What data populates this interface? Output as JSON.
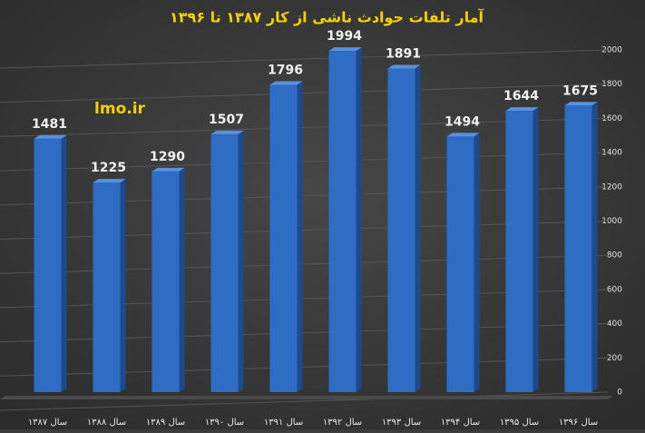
{
  "chart_data": {
    "type": "bar",
    "title": "آمار تلفات حوادث ناشی از کار ۱۳۸۷ تا ۱۳۹۶",
    "annotation": "lmo.ir",
    "categories": [
      "سال ۱۳۸۷",
      "سال ۱۳۸۸",
      "سال ۱۳۸۹",
      "سال ۱۳۹۰",
      "سال ۱۳۹۱",
      "سال ۱۳۹۲",
      "سال ۱۳۹۳",
      "سال ۱۳۹۴",
      "سال ۱۳۹۵",
      "سال ۱۳۹۶"
    ],
    "values": [
      1481,
      1225,
      1290,
      1507,
      1796,
      1994,
      1891,
      1494,
      1644,
      1675
    ],
    "color": "#2f6cc4",
    "ylim": [
      0,
      2000
    ],
    "yticks": [
      0,
      200,
      400,
      600,
      800,
      1000,
      1200,
      1400,
      1600,
      1800,
      2000
    ],
    "grid": true
  }
}
